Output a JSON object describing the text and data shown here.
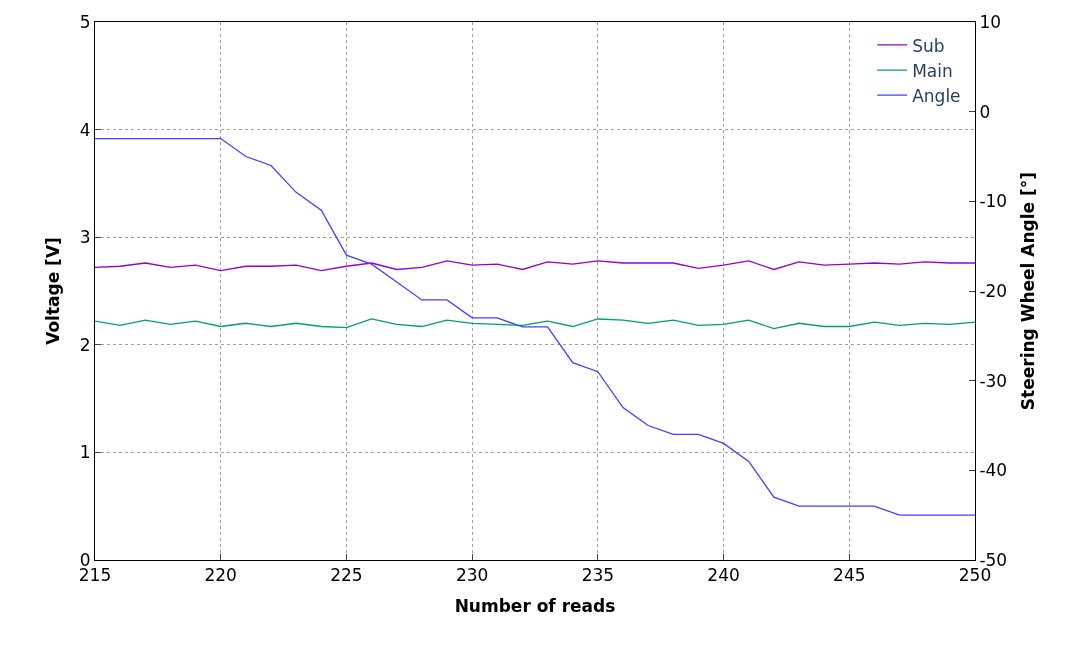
{
  "chart_data": {
    "type": "line",
    "xlabel": "Number of reads",
    "ylabel": "Voltage [V]",
    "y2label": "Steering Wheel Angle [°]",
    "x": [
      215,
      216,
      217,
      218,
      219,
      220,
      221,
      222,
      223,
      224,
      225,
      226,
      227,
      228,
      229,
      230,
      231,
      232,
      233,
      234,
      235,
      236,
      237,
      238,
      239,
      240,
      241,
      242,
      243,
      244,
      245,
      246,
      247,
      248,
      249,
      250
    ],
    "series": [
      {
        "name": "Sub",
        "color": "#9400d3",
        "values": [
          2.72,
          2.73,
          2.76,
          2.72,
          2.74,
          2.69,
          2.73,
          2.73,
          2.74,
          2.69,
          2.73,
          2.76,
          2.7,
          2.72,
          2.78,
          2.74,
          2.75,
          2.7,
          2.77,
          2.75,
          2.78,
          2.76,
          2.76,
          2.76,
          2.71,
          2.74,
          2.78,
          2.7,
          2.77,
          2.74,
          2.75,
          2.76,
          2.75,
          2.77,
          2.76,
          2.76
        ]
      },
      {
        "name": "Main",
        "color": "#009e73",
        "values": [
          2.22,
          2.18,
          2.23,
          2.19,
          2.22,
          2.17,
          2.2,
          2.17,
          2.2,
          2.17,
          2.16,
          2.24,
          2.19,
          2.17,
          2.23,
          2.2,
          2.19,
          2.18,
          2.22,
          2.17,
          2.24,
          2.23,
          2.2,
          2.23,
          2.18,
          2.19,
          2.23,
          2.15,
          2.2,
          2.17,
          2.17,
          2.21,
          2.18,
          2.2,
          2.19,
          2.21
        ]
      },
      {
        "name": "Angle",
        "color": "#4040ff",
        "axis": "y2",
        "values": [
          -3,
          -3,
          -3,
          -3,
          -3,
          -3,
          -5,
          -6,
          -9,
          -11,
          -16,
          -17,
          -19,
          -21,
          -21,
          -23,
          -23,
          -24,
          -24,
          -28,
          -29,
          -33,
          -35,
          -36,
          -36,
          -37,
          -39,
          -43,
          -44,
          -44,
          -44,
          -44,
          -45,
          -45,
          -45,
          -45
        ]
      }
    ],
    "xlim": [
      215,
      250
    ],
    "xticks": [
      215,
      220,
      225,
      230,
      235,
      240,
      245,
      250
    ],
    "ylim": [
      0,
      5
    ],
    "yticks": [
      0,
      1,
      2,
      3,
      4,
      5
    ],
    "y2lim": [
      -50,
      10
    ],
    "y2ticks": [
      -50,
      -40,
      -30,
      -20,
      -10,
      0,
      10
    ],
    "grid": true,
    "legend": "top right",
    "line_style": "solid",
    "marker": "none"
  }
}
